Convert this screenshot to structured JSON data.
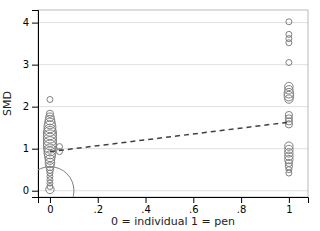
{
  "chart_data": {
    "type": "scatter",
    "xlabel": "0 = individual 1 = pen",
    "ylabel": "SMD",
    "xlim": [
      -0.05,
      1.08
    ],
    "ylim": [
      -0.15,
      4.3
    ],
    "xticks": [
      0,
      {
        "value": 0.2,
        "label": ".2"
      },
      {
        "value": 0.4,
        "label": ".4"
      },
      {
        "value": 0.6,
        "label": ".6"
      },
      {
        "value": 0.8,
        "label": ".8"
      },
      1
    ],
    "yticks": [
      0,
      1,
      2,
      3,
      4
    ],
    "grid": true,
    "series": [
      {
        "type": "scatter",
        "marker": "circle-open",
        "color": "#808080",
        "x": [
          0.0,
          0.0,
          0.0,
          0.0,
          0.0,
          0.0,
          0.0,
          0.0,
          0.0,
          0.0,
          0.0,
          0.0,
          0.0,
          0.0,
          0.0,
          0.0,
          0.0,
          0.0,
          0.0,
          0.0,
          0.0,
          0.0,
          0.0,
          0.0,
          0.0,
          0.0,
          0.04,
          0.04
        ],
        "values": [
          0.03,
          0.1,
          0.18,
          0.26,
          0.34,
          0.42,
          0.5,
          0.58,
          0.66,
          0.74,
          0.82,
          0.9,
          0.97,
          1.05,
          1.13,
          1.21,
          1.29,
          1.37,
          1.44,
          1.52,
          1.6,
          1.68,
          1.75,
          1.83,
          2.17,
          0.0,
          0.93,
          1.05
        ],
        "sizes": [
          7,
          5,
          5,
          5,
          5,
          5,
          6,
          7,
          8,
          8,
          9,
          10,
          10,
          11,
          11,
          11,
          11,
          11,
          10,
          10,
          9,
          8,
          7,
          6,
          5,
          40,
          5,
          5
        ]
      },
      {
        "type": "scatter",
        "marker": "circle-open",
        "color": "#808080",
        "x": [
          1.0,
          1.0,
          1.0,
          1.0,
          1.0,
          1.0,
          1.0,
          1.0,
          1.0,
          1.0,
          1.0,
          1.0,
          1.0,
          1.0,
          1.0,
          1.0,
          1.0,
          1.0,
          1.0,
          1.0,
          1.0,
          1.0,
          1.0
        ],
        "values": [
          0.42,
          0.5,
          0.58,
          0.66,
          0.74,
          0.82,
          0.9,
          0.98,
          1.06,
          1.58,
          1.65,
          1.72,
          1.8,
          2.18,
          2.25,
          2.32,
          2.4,
          2.48,
          3.05,
          3.52,
          3.62,
          3.72,
          4.02
        ],
        "sizes": [
          5,
          5,
          6,
          6,
          7,
          7,
          7,
          7,
          7,
          6,
          6,
          6,
          6,
          7,
          8,
          8,
          7,
          7,
          5,
          5,
          5,
          5,
          5
        ]
      },
      {
        "type": "line",
        "line_style": "dashed",
        "color": "#404040",
        "x": [
          0.0,
          1.0
        ],
        "values": [
          0.93,
          1.63
        ]
      }
    ]
  }
}
